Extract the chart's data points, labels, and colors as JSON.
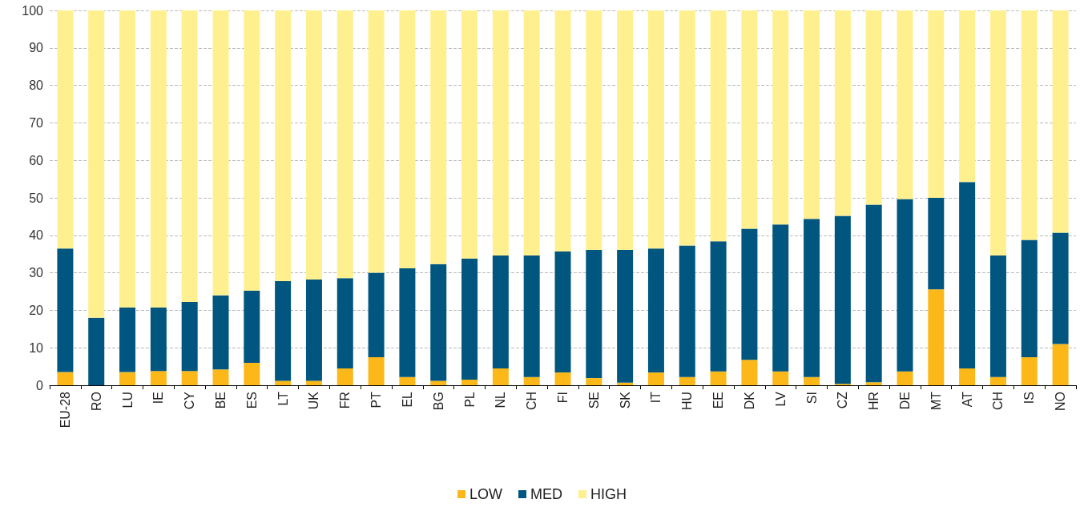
{
  "chart_data": {
    "type": "bar",
    "stacked": true,
    "categories": [
      "EU-28",
      "RO",
      "LU",
      "IE",
      "CY",
      "BE",
      "ES",
      "LT",
      "UK",
      "FR",
      "PT",
      "EL",
      "BG",
      "PL",
      "NL",
      "CH",
      "FI",
      "SE",
      "SK",
      "IT",
      "HU",
      "EE",
      "DK",
      "LV",
      "SI",
      "CZ",
      "HR",
      "DE",
      "MT",
      "AT",
      "CH",
      "IS",
      "NO"
    ],
    "series": [
      {
        "name": "LOW",
        "color": "#fbb818",
        "values": [
          3.5,
          0,
          3.5,
          3.8,
          3.8,
          4.2,
          6,
          1.2,
          1.2,
          4.5,
          7.5,
          2.2,
          1.2,
          1.5,
          4.5,
          2.2,
          3.4,
          1.9,
          0.7,
          3.4,
          2.2,
          3.7,
          6.8,
          3.7,
          2.2,
          0.4,
          0.8,
          3.7,
          25.6,
          4.5,
          2.2,
          7.5,
          11
        ]
      },
      {
        "name": "MED",
        "color": "#00567f",
        "values": [
          33,
          18,
          17.2,
          16.9,
          18.4,
          19.8,
          19.2,
          26.6,
          27,
          24.1,
          22.5,
          29,
          31.1,
          32.3,
          30.1,
          32.4,
          32.3,
          34.2,
          35.4,
          33.1,
          35.1,
          34.7,
          35,
          39.2,
          42.2,
          44.8,
          47.4,
          46,
          24.4,
          49.7,
          32.4,
          31.3,
          29.7
        ]
      },
      {
        "name": "HIGH",
        "color": "#fff08f",
        "values": [
          63.5,
          82,
          79.3,
          79.3,
          77.8,
          76,
          74.8,
          72.2,
          71.8,
          71.4,
          70,
          68.8,
          67.7,
          66.2,
          65.4,
          65.4,
          64.3,
          63.9,
          63.9,
          63.5,
          62.7,
          61.6,
          58.2,
          57.1,
          55.6,
          54.8,
          51.8,
          50.3,
          50,
          45.8,
          65.4,
          61.2,
          59.3
        ]
      }
    ],
    "ylim": [
      0,
      100
    ],
    "yticks": [
      0,
      10,
      20,
      30,
      40,
      50,
      60,
      70,
      80,
      90,
      100
    ],
    "grid": "y",
    "legend": "bottom"
  }
}
